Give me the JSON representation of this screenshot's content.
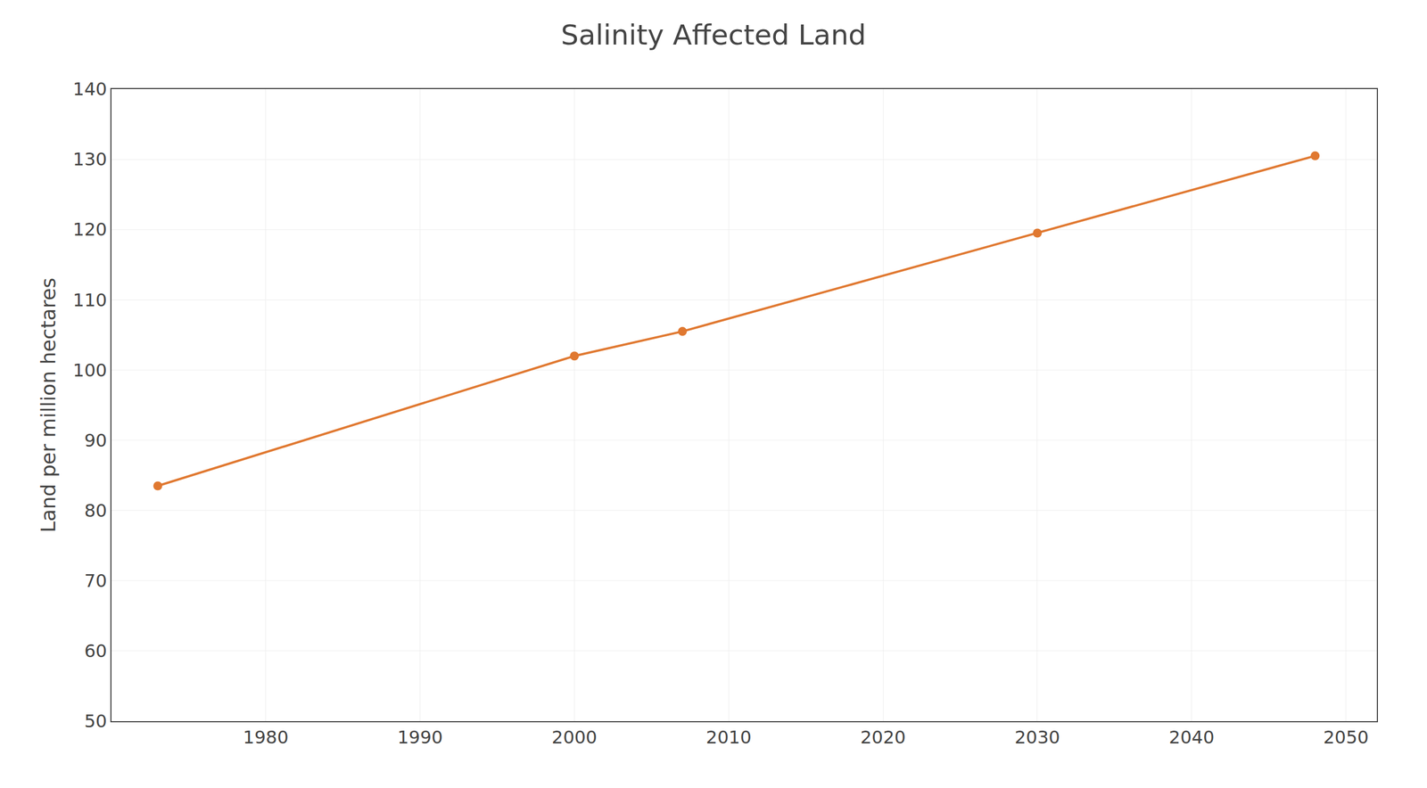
{
  "chart_data": {
    "type": "line",
    "title": "Salinity Affected Land",
    "ylabel": "Land per million hectares",
    "x": [
      1973,
      2000,
      2007,
      2030,
      2048
    ],
    "values": [
      83.5,
      102,
      105.5,
      119.5,
      130.5
    ],
    "color": "#e07830",
    "marker": "circle",
    "xlim": [
      1970,
      2052
    ],
    "ylim": [
      50,
      140
    ],
    "xticks": [
      1980,
      1990,
      2000,
      2010,
      2020,
      2030,
      2040,
      2050
    ],
    "yticks": [
      50,
      60,
      70,
      80,
      90,
      100,
      110,
      120,
      130,
      140
    ],
    "grid": true
  }
}
